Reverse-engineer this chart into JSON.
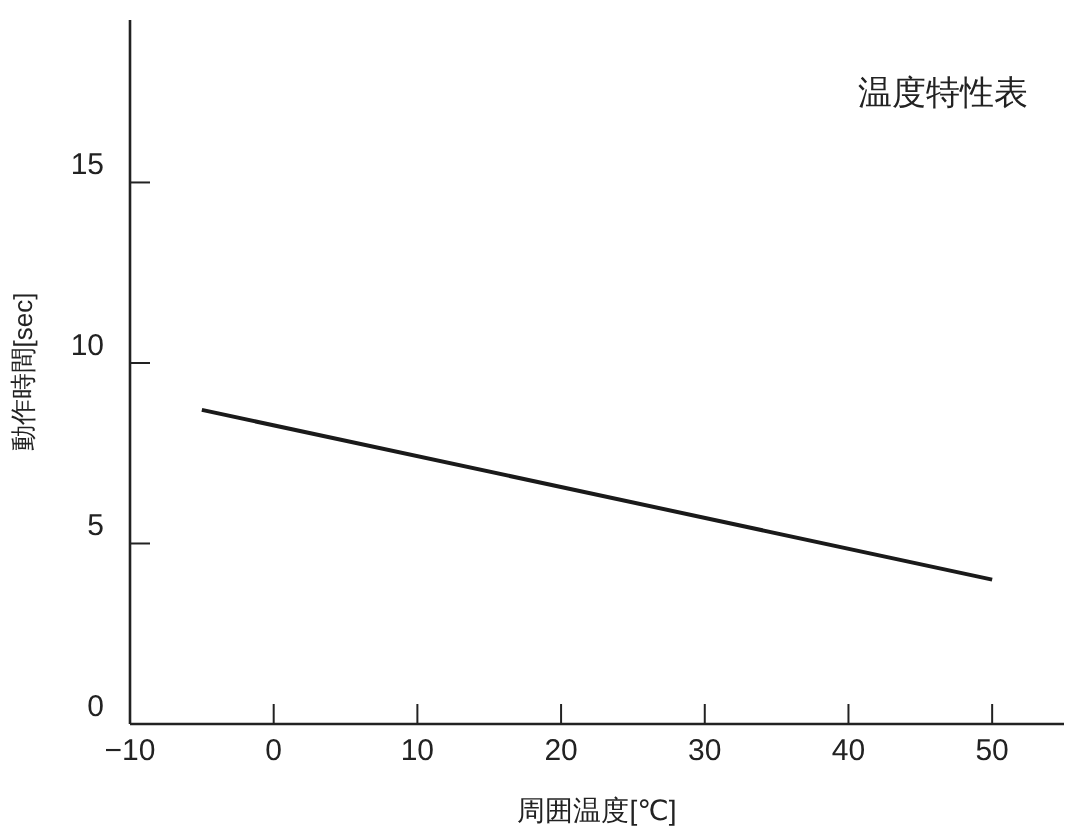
{
  "chart_data": {
    "type": "line",
    "title": "温度特性表",
    "xlabel": "周囲温度[℃]",
    "ylabel": "動作時間[sec]",
    "x": [
      -5,
      50
    ],
    "series": [
      {
        "color": "#1a1a1a",
        "values": [
          8.7,
          4.0
        ]
      }
    ],
    "xlim": [
      -10,
      55
    ],
    "xticks": [
      {
        "value": -10,
        "label": "−10"
      },
      0,
      10,
      20,
      30,
      40,
      50
    ],
    "ylim": [
      0,
      19.5
    ],
    "yticks": [
      0,
      5,
      10,
      15
    ],
    "grid": false,
    "marker": "none",
    "line_style": "solid"
  }
}
